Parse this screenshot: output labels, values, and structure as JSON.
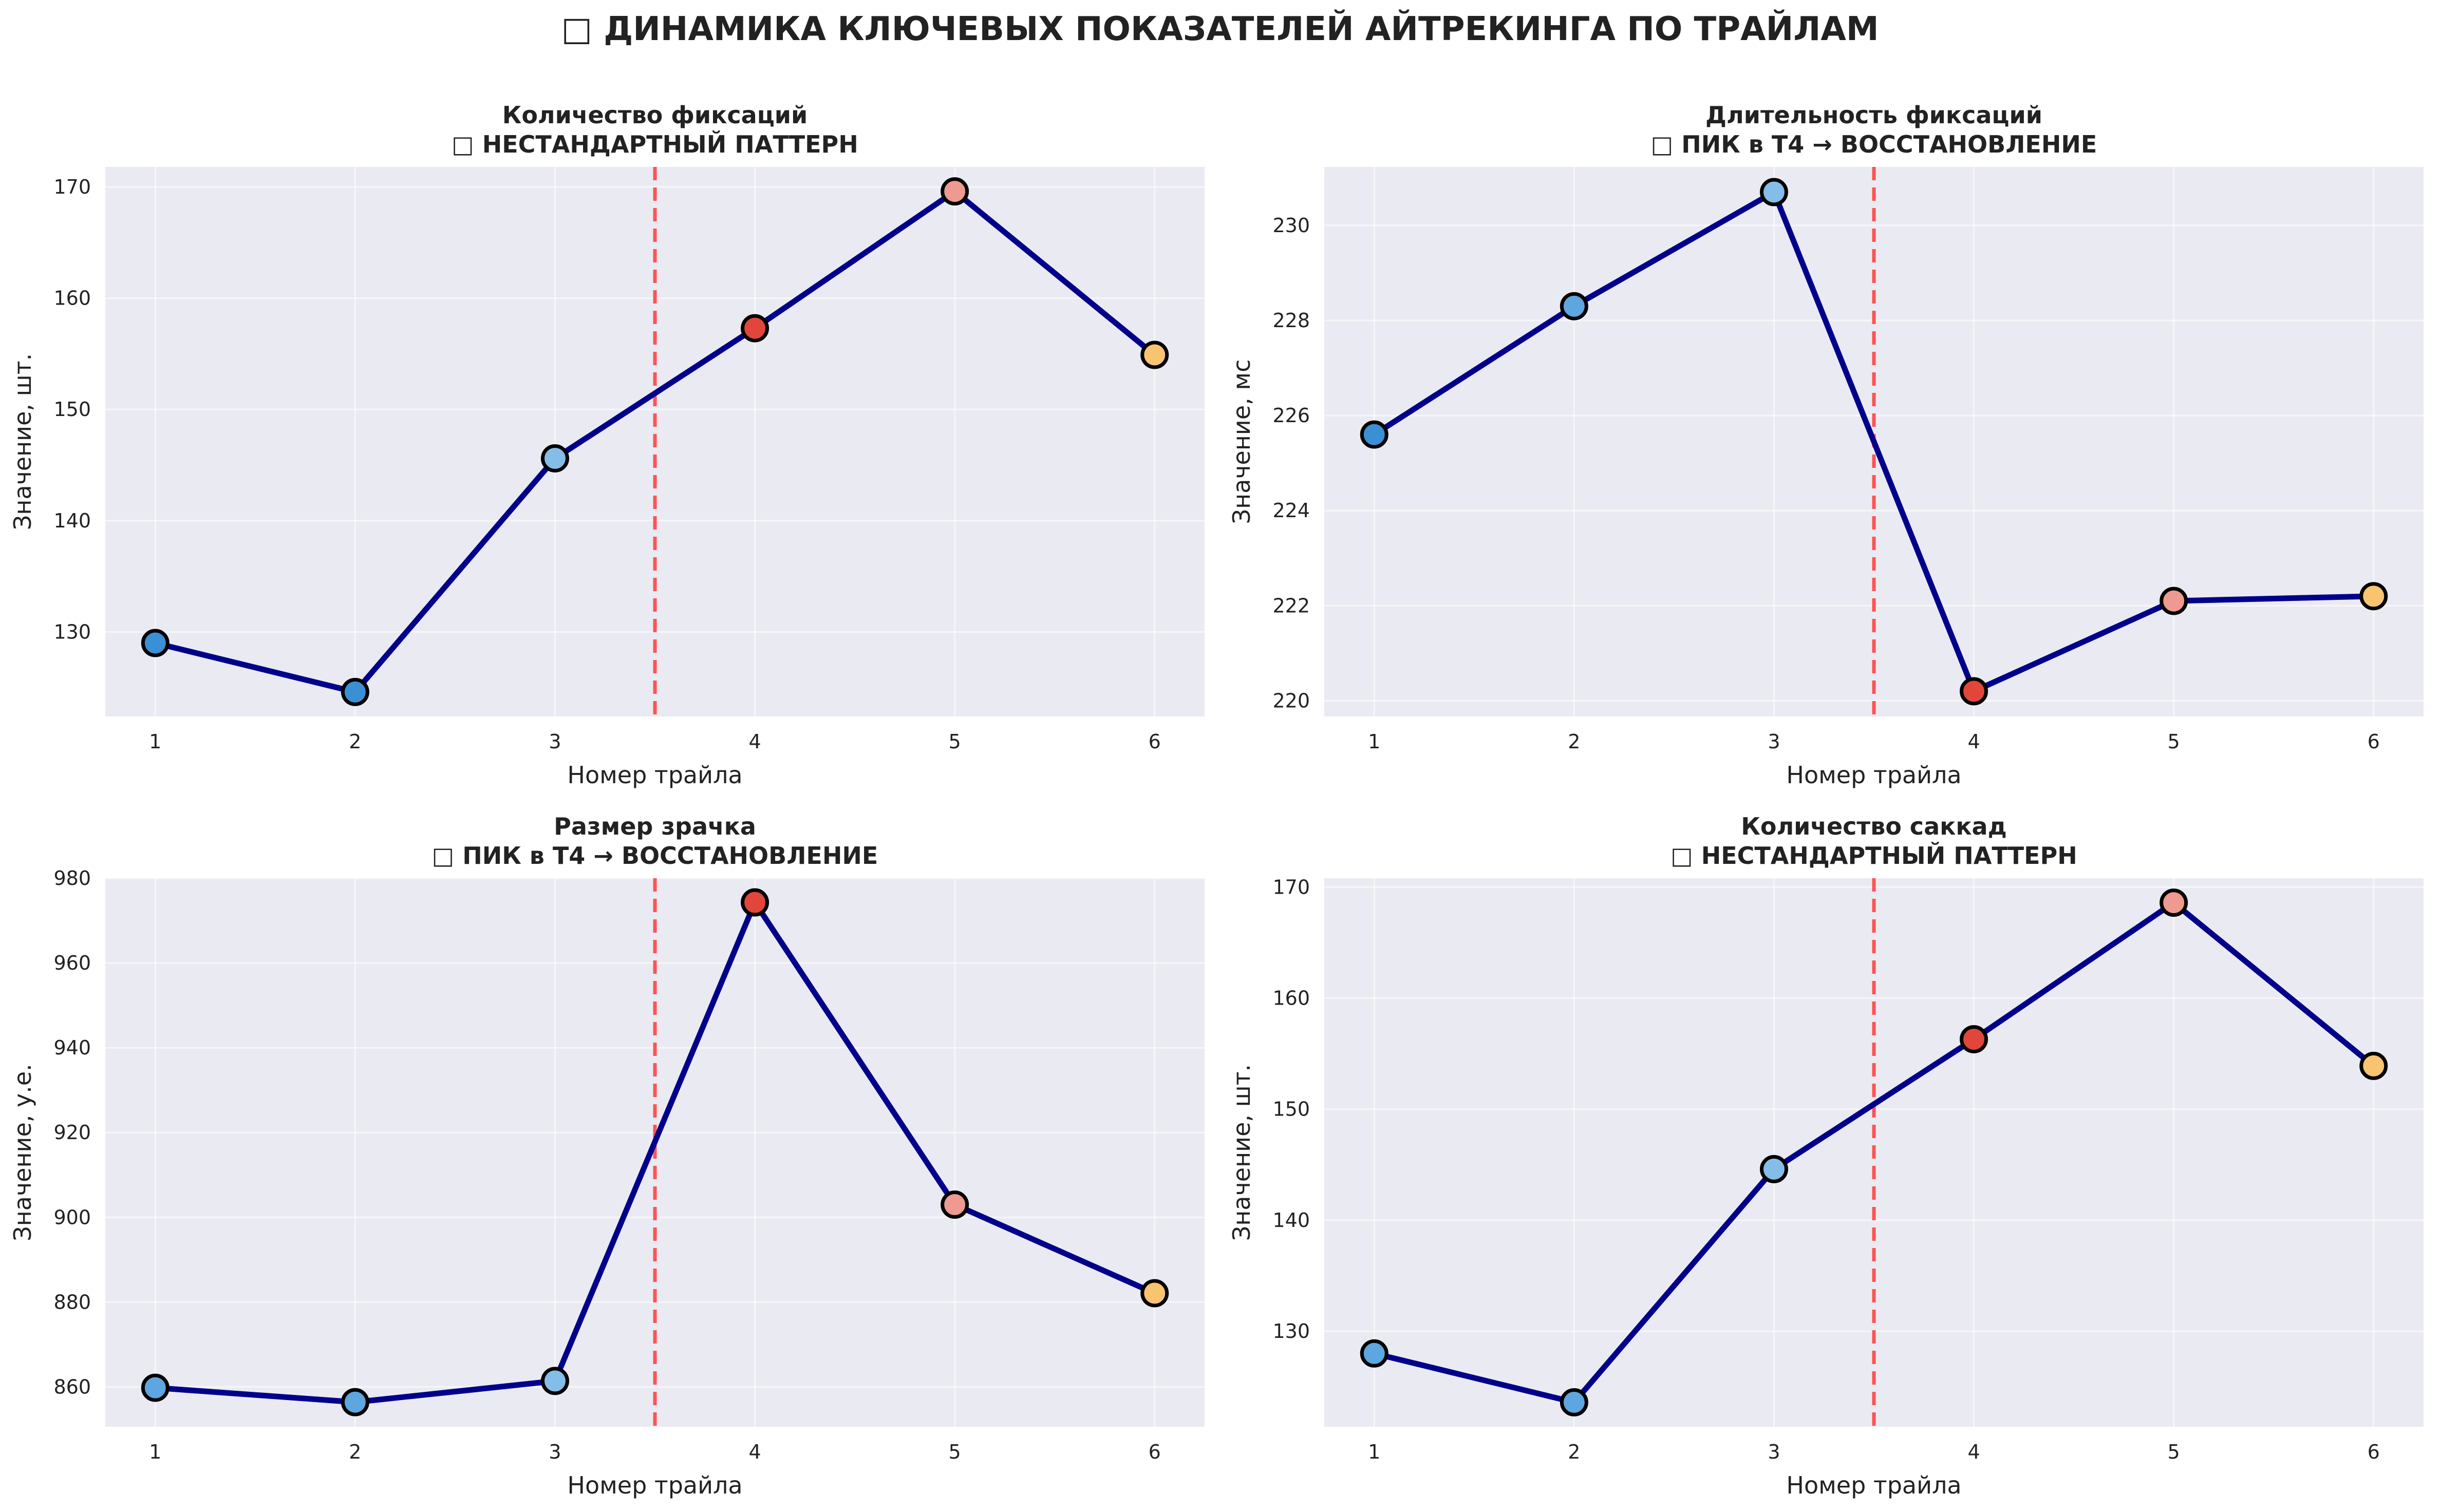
{
  "figure": {
    "icon": "chart-emoji-icon",
    "title": "□ ДИНАМИКА КЛЮЧЕВЫХ ПОКАЗАТЕЛЕЙ АЙТРЕКИНГА ПО ТРАЙЛАМ"
  },
  "colors": {
    "line": "#00008b",
    "divider": "#ff4444",
    "plot_bg": "#eaeaf2",
    "marker_edge": "#000000",
    "trials_1_3": "#3b8fd4",
    "trial_4": "#e2463a",
    "trial_5": "#ee9a90",
    "trial_6": "#f8c470"
  },
  "chart_data": [
    {
      "type": "line",
      "title": "Количество фиксаций",
      "subtitle": "□ НЕСТАНДАРТНЫЙ ПАТТЕРН",
      "xlabel": "Номер трайла",
      "ylabel": "Значение, шт.",
      "x": [
        1,
        2,
        3,
        4,
        5,
        6
      ],
      "values": [
        129.0,
        124.6,
        145.6,
        157.3,
        169.6,
        154.9
      ],
      "marker_colors": [
        "#3b8fd4",
        "#3b8fd4",
        "#85bde9",
        "#e2463a",
        "#ee9a90",
        "#f8c470"
      ],
      "xlim": [
        0.75,
        6.25
      ],
      "ylim": [
        122.4,
        171.8
      ],
      "yticks": [
        130,
        140,
        150,
        160,
        170
      ],
      "divider_x": 3.5,
      "grid": true
    },
    {
      "type": "line",
      "title": "Длительность фиксаций",
      "subtitle": "□ ПИК в T4 → ВОССТАНОВЛЕНИЕ",
      "xlabel": "Номер трайла",
      "ylabel": "Значение, мс",
      "x": [
        1,
        2,
        3,
        4,
        5,
        6
      ],
      "values": [
        225.6,
        228.3,
        230.7,
        220.2,
        222.1,
        222.2
      ],
      "marker_colors": [
        "#3b8fd4",
        "#5ea6e0",
        "#85bde9",
        "#e2463a",
        "#ee9a90",
        "#f8c470"
      ],
      "xlim": [
        0.75,
        6.25
      ],
      "ylim": [
        219.67,
        231.23
      ],
      "yticks": [
        220,
        222,
        224,
        226,
        228,
        230
      ],
      "divider_x": 3.5,
      "grid": true
    },
    {
      "type": "line",
      "title": "Размер зрачка",
      "subtitle": "□ ПИК в T4 → ВОССТАНОВЛЕНИЕ",
      "xlabel": "Номер трайла",
      "ylabel": "Значение, у.е.",
      "x": [
        1,
        2,
        3,
        4,
        5,
        6
      ],
      "values": [
        859.8,
        856.4,
        861.4,
        974.3,
        903.0,
        882.1
      ],
      "marker_colors": [
        "#5ea6e0",
        "#5ea6e0",
        "#85bde9",
        "#e2463a",
        "#ee9a90",
        "#f8c470"
      ],
      "xlim": [
        0.75,
        6.25
      ],
      "ylim": [
        850.6,
        980.0
      ],
      "yticks": [
        860,
        880,
        900,
        920,
        940,
        960,
        980
      ],
      "divider_x": 3.5,
      "grid": true
    },
    {
      "type": "line",
      "title": "Количество саккад",
      "subtitle": "□ НЕСТАНДАРТНЫЙ ПАТТЕРН",
      "xlabel": "Номер трайла",
      "ylabel": "Значение, шт.",
      "x": [
        1,
        2,
        3,
        4,
        5,
        6
      ],
      "values": [
        128.0,
        123.6,
        144.6,
        156.3,
        168.6,
        153.9
      ],
      "marker_colors": [
        "#5ea6e0",
        "#5ea6e0",
        "#85bde9",
        "#e2463a",
        "#ee9a90",
        "#f8c470"
      ],
      "xlim": [
        0.75,
        6.25
      ],
      "ylim": [
        121.4,
        170.8
      ],
      "yticks": [
        130,
        140,
        150,
        160,
        170
      ],
      "divider_x": 3.5,
      "grid": true
    }
  ]
}
